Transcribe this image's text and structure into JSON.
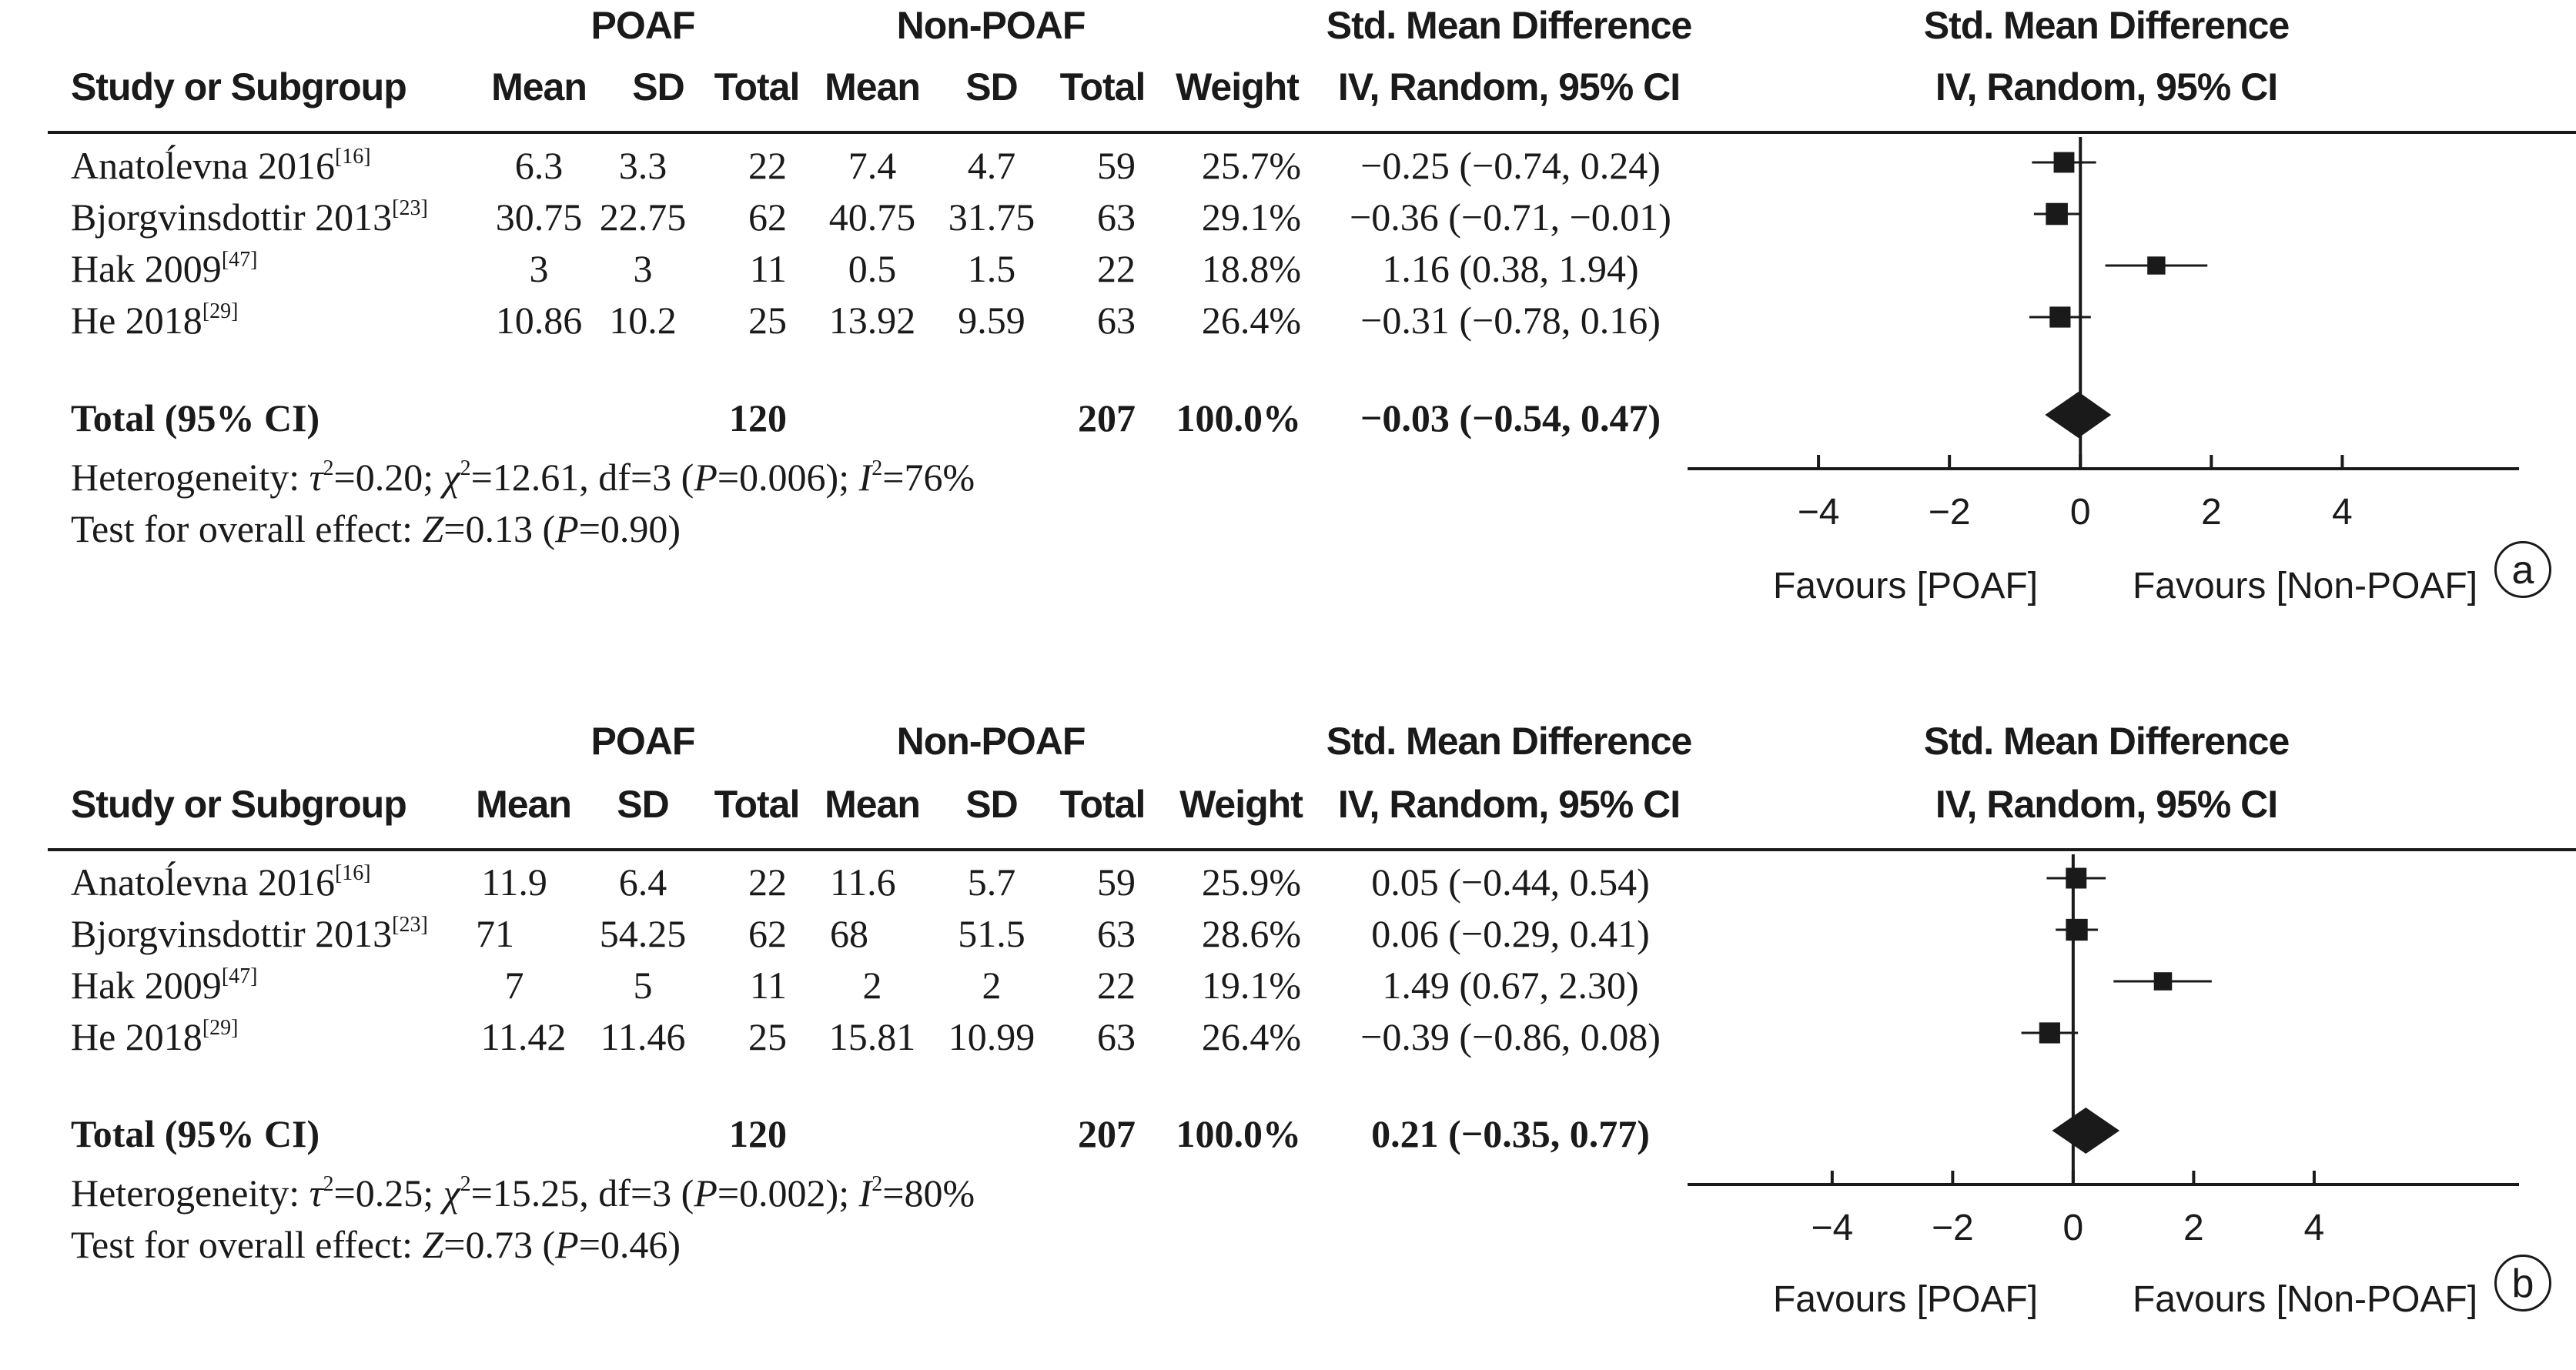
{
  "chart_data": [
    {
      "type": "forest",
      "panel_label": "a",
      "headers": {
        "group1": "POAF",
        "group2": "Non-POAF",
        "effect_title": "Std. Mean Difference",
        "effect_subtitle": "IV, Random, 95% CI",
        "study": "Study or Subgroup",
        "mean": "Mean",
        "sd": "SD",
        "total": "Total",
        "weight": "Weight"
      },
      "studies": [
        {
          "name": "Anatoĺevna 2016",
          "ref": "[16]",
          "mean1": "6.3",
          "sd1": "3.3",
          "total1": "22",
          "mean2": "7.4",
          "sd2": "4.7",
          "total2": "59",
          "weight": "25.7%",
          "ci_text": "−0.25 (−0.74, 0.24)",
          "est": -0.25,
          "lo": -0.74,
          "hi": 0.24,
          "w": 25.7
        },
        {
          "name": "Bjorgvinsdottir 2013",
          "ref": "[23]",
          "mean1": "30.75",
          "sd1": "22.75",
          "total1": "62",
          "mean2": "40.75",
          "sd2": "31.75",
          "total2": "63",
          "weight": "29.1%",
          "ci_text": "−0.36 (−0.71, −0.01)",
          "est": -0.36,
          "lo": -0.71,
          "hi": -0.01,
          "w": 29.1
        },
        {
          "name": "Hak 2009",
          "ref": "[47]",
          "mean1": "3",
          "sd1": "3",
          "total1": "11",
          "mean2": "0.5",
          "sd2": "1.5",
          "total2": "22",
          "weight": "18.8%",
          "ci_text": "1.16 (0.38, 1.94)",
          "est": 1.16,
          "lo": 0.38,
          "hi": 1.94,
          "w": 18.8
        },
        {
          "name": "He 2018",
          "ref": "[29]",
          "mean1": "10.86",
          "sd1": "10.2",
          "total1": "25",
          "mean2": "13.92",
          "sd2": "9.59",
          "total2": "63",
          "weight": "26.4%",
          "ci_text": "−0.31 (−0.78, 0.16)",
          "est": -0.31,
          "lo": -0.78,
          "hi": 0.16,
          "w": 26.4
        }
      ],
      "total": {
        "label": "Total (95% CI)",
        "total1": "120",
        "total2": "207",
        "weight": "100.0%",
        "ci_text": "−0.03 (−0.54, 0.47)",
        "est": -0.03,
        "lo": -0.54,
        "hi": 0.47
      },
      "heterogeneity": {
        "prefix": "Heterogeneity: ",
        "tau2": "=0.20; ",
        "chi2": "=12.61, df=3 (",
        "p": "=0.006); ",
        "i2": "=76%"
      },
      "overall": {
        "prefix": "Test for overall effect: ",
        "z": "=0.13 (",
        "p": "=0.90)"
      },
      "axis": {
        "xlim": [
          -6,
          6.7
        ],
        "ticks": [
          -4,
          -2,
          0,
          2,
          4
        ],
        "tick_labels": [
          "−4",
          "−2",
          "0",
          "2",
          "4"
        ],
        "favours_left": "Favours [POAF]",
        "favours_right": "Favours [Non-POAF]"
      }
    },
    {
      "type": "forest",
      "panel_label": "b",
      "headers": {
        "group1": "POAF",
        "group2": "Non-POAF",
        "effect_title": "Std. Mean Difference",
        "effect_subtitle": "IV, Random, 95% CI",
        "study": "Study or Subgroup",
        "mean": "Mean",
        "sd": "SD",
        "total": "Total",
        "weight": "Weight"
      },
      "studies": [
        {
          "name": "Anatoĺevna 2016",
          "ref": "[16]",
          "mean1": "11.9",
          "sd1": "6.4",
          "total1": "22",
          "mean2": "11.6",
          "sd2": "5.7",
          "total2": "59",
          "weight": "25.9%",
          "ci_text": "0.05 (−0.44, 0.54)",
          "est": 0.05,
          "lo": -0.44,
          "hi": 0.54,
          "w": 25.9
        },
        {
          "name": "Bjorgvinsdottir 2013",
          "ref": "[23]",
          "mean1": "71",
          "sd1": "54.25",
          "total1": "62",
          "mean2": "68",
          "sd2": "51.5",
          "total2": "63",
          "weight": "28.6%",
          "ci_text": "0.06 (−0.29, 0.41)",
          "est": 0.06,
          "lo": -0.29,
          "hi": 0.41,
          "w": 28.6
        },
        {
          "name": "Hak 2009",
          "ref": "[47]",
          "mean1": "7",
          "sd1": "5",
          "total1": "11",
          "mean2": "2",
          "sd2": "2",
          "total2": "22",
          "weight": "19.1%",
          "ci_text": "1.49 (0.67, 2.30)",
          "est": 1.49,
          "lo": 0.67,
          "hi": 2.3,
          "w": 19.1
        },
        {
          "name": "He 2018",
          "ref": "[29]",
          "mean1": "11.42",
          "sd1": "11.46",
          "total1": "25",
          "mean2": "15.81",
          "sd2": "10.99",
          "total2": "63",
          "weight": "26.4%",
          "ci_text": "−0.39 (−0.86, 0.08)",
          "est": -0.39,
          "lo": -0.86,
          "hi": 0.08,
          "w": 26.4
        }
      ],
      "total": {
        "label": "Total (95% CI)",
        "total1": "120",
        "total2": "207",
        "weight": "100.0%",
        "ci_text": "0.21 (−0.35, 0.77)",
        "est": 0.21,
        "lo": -0.35,
        "hi": 0.77
      },
      "heterogeneity": {
        "prefix": "Heterogeneity: ",
        "tau2": "=0.25; ",
        "chi2": "=15.25, df=3 (",
        "p": "=0.002); ",
        "i2": "=80%"
      },
      "overall": {
        "prefix": "Test for overall effect: ",
        "z": "=0.73 (",
        "p": "=0.46)"
      },
      "axis": {
        "xlim": [
          -6.4,
          7.4
        ],
        "ticks": [
          -4,
          -2,
          0,
          2,
          4
        ],
        "tick_labels": [
          "−4",
          "−2",
          "0",
          "2",
          "4"
        ],
        "favours_left": "Favours [POAF]",
        "favours_right": "Favours [Non-POAF]"
      }
    }
  ]
}
